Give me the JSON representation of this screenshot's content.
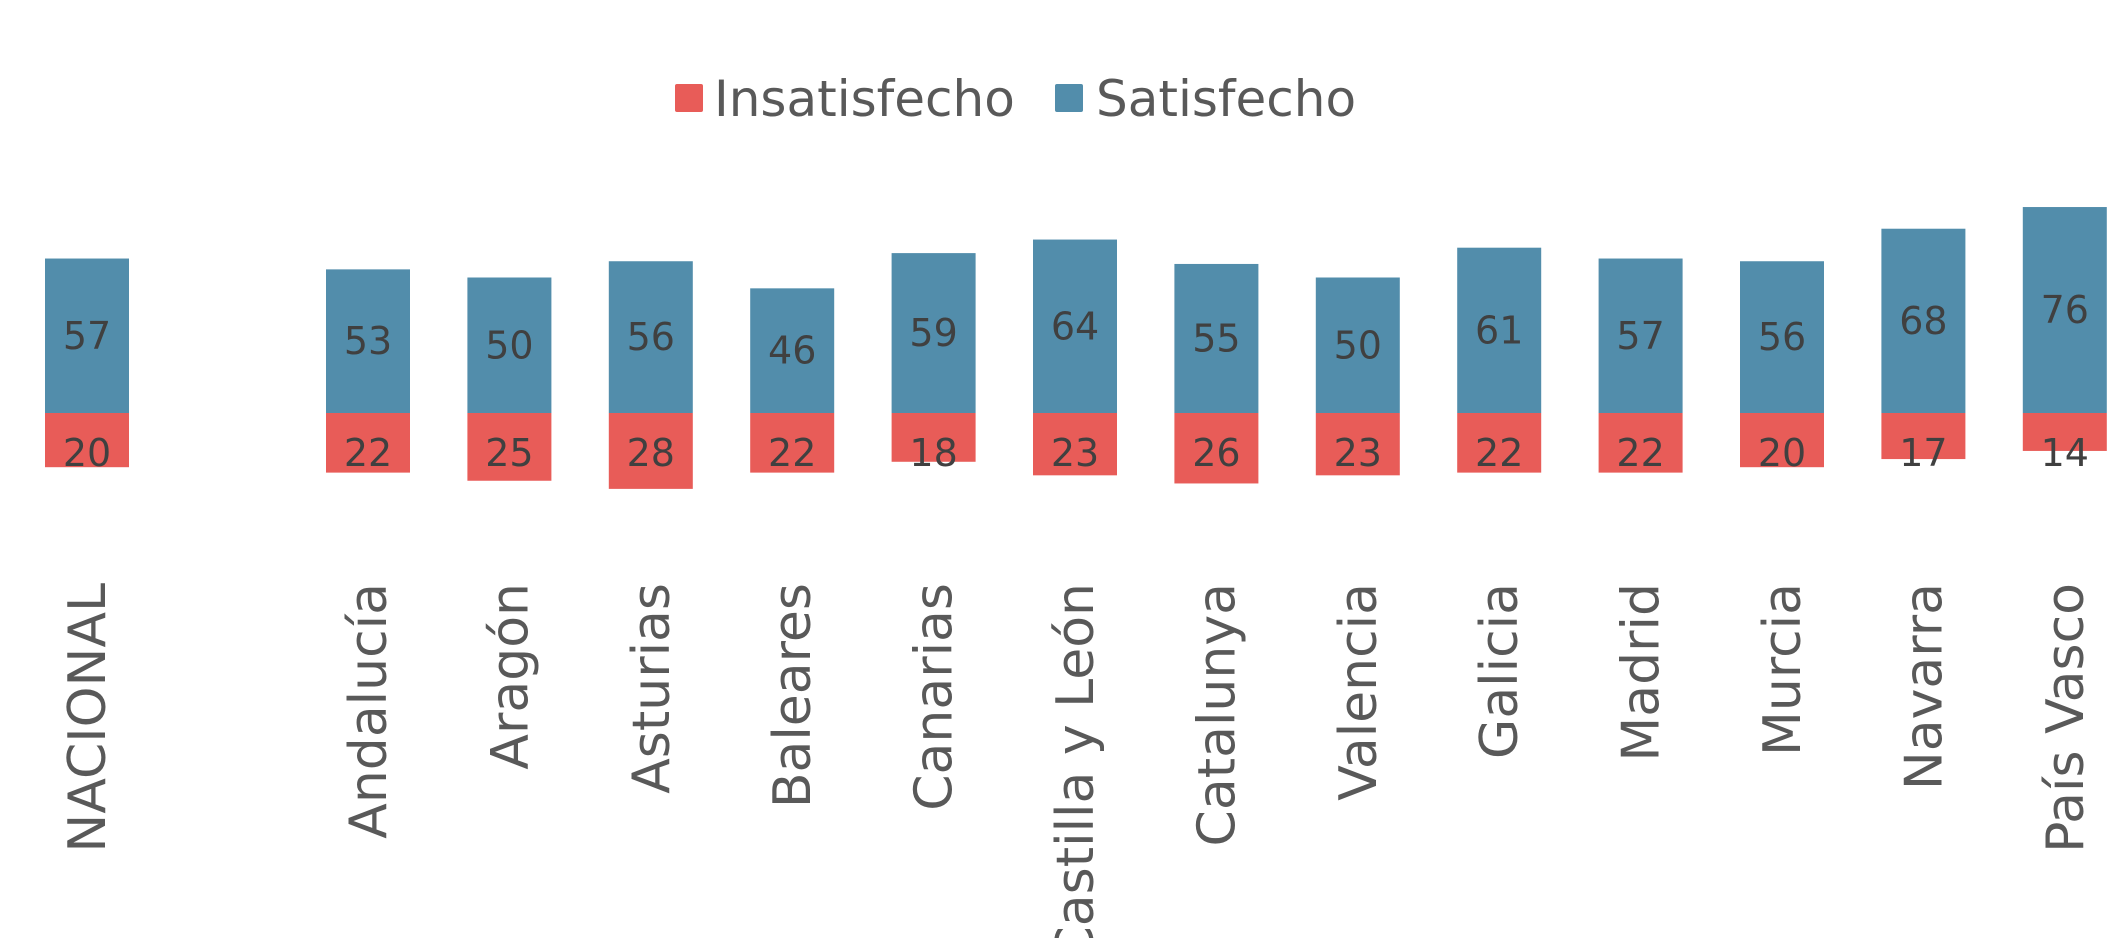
{
  "chart_data": {
    "type": "bar",
    "stacked": true,
    "diverging": true,
    "categories": [
      "NACIONAL",
      "Andalucía",
      "Aragón",
      "Asturias",
      "Baleares",
      "Canarias",
      "Castilla  y León",
      "Catalunya",
      "Valencia",
      "Galicia",
      "Madrid",
      "Murcia",
      "Navarra",
      "País Vasco"
    ],
    "series": [
      {
        "name": "Insatisfecho",
        "color": "#e85c58",
        "direction": "below",
        "values": [
          20,
          22,
          25,
          28,
          22,
          18,
          23,
          26,
          23,
          22,
          22,
          20,
          17,
          14
        ]
      },
      {
        "name": "Satisfecho",
        "color": "#528dab",
        "direction": "above",
        "values": [
          57,
          53,
          50,
          56,
          46,
          59,
          64,
          55,
          50,
          61,
          57,
          56,
          68,
          76
        ]
      }
    ],
    "legend_position": "top-center",
    "grid": false,
    "label_color": "#404040",
    "text_color": "#595959"
  }
}
